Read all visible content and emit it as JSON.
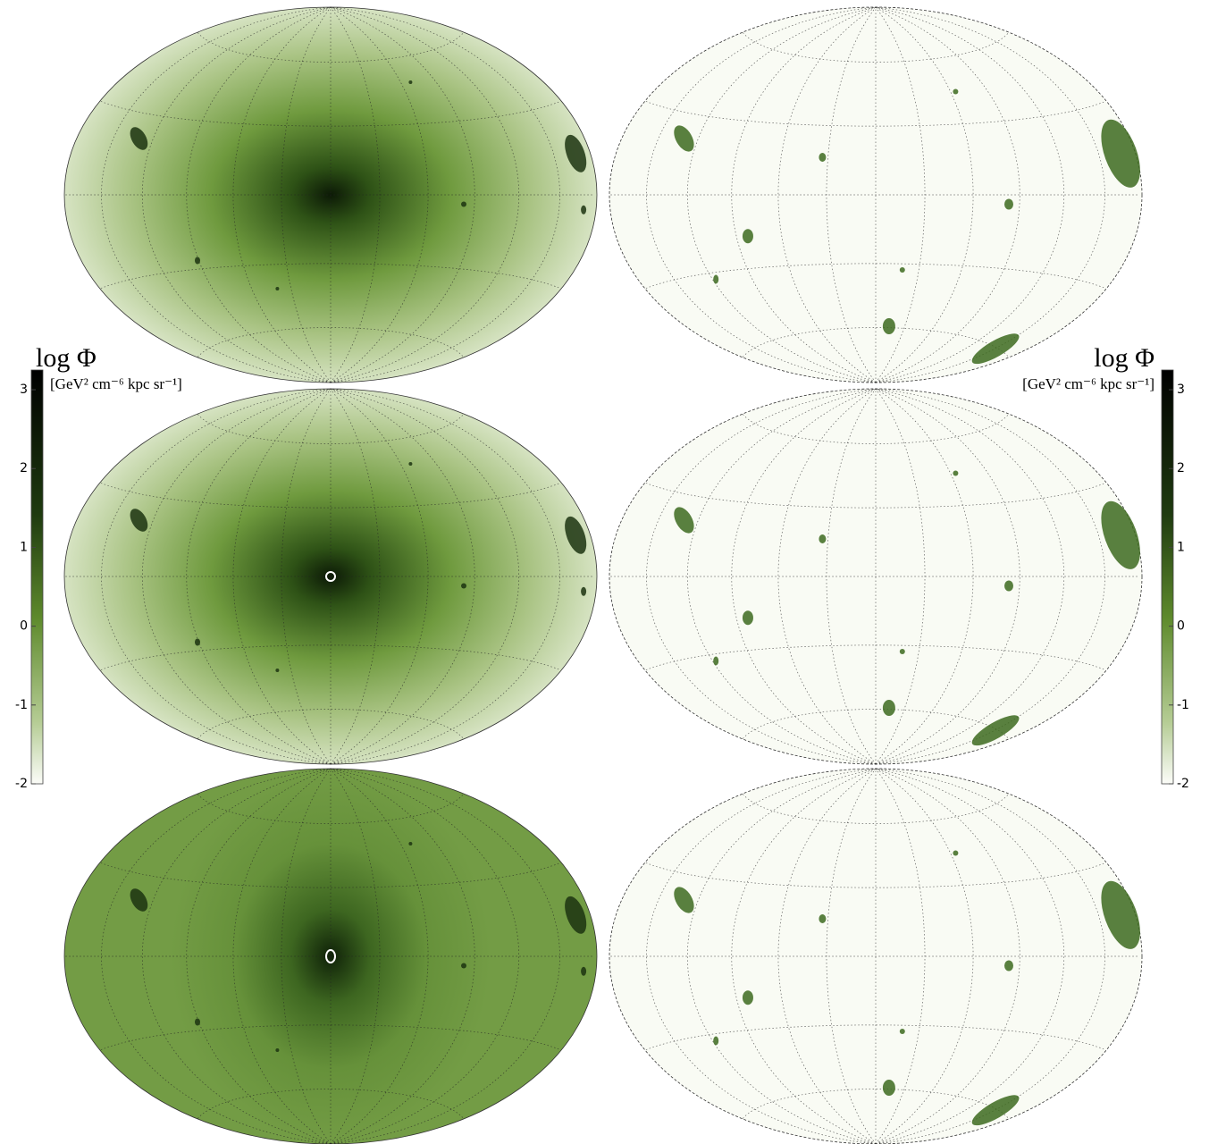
{
  "colorbars": [
    {
      "title": "log Φ",
      "unit": "[GeV² cm⁻⁶ kpc sr⁻¹]",
      "lim": [
        -2,
        3.25
      ],
      "ticks": [
        -2,
        -1,
        0,
        1,
        2,
        3
      ]
    },
    {
      "title": "log Φ",
      "unit": "[GeV² cm⁻⁶ kpc sr⁻¹]",
      "lim": [
        -2,
        3.25
      ],
      "ticks": [
        -2,
        -1,
        0,
        1,
        2,
        3
      ]
    }
  ]
}
